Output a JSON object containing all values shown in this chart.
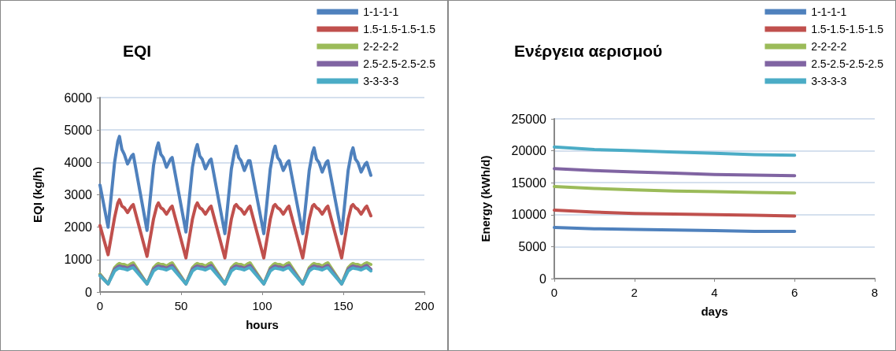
{
  "chart_data": [
    {
      "type": "line",
      "title": "EQI",
      "xlabel": "hours",
      "ylabel": "EQI (kg/h)",
      "xlim": [
        0,
        200
      ],
      "xticks": [
        0,
        50,
        100,
        150,
        200
      ],
      "ylim": [
        0,
        6000
      ],
      "yticks": [
        0,
        1000,
        2000,
        3000,
        4000,
        5000,
        6000
      ],
      "grid": "y",
      "legend": "top right",
      "marker": "none",
      "line_style": "solid",
      "x": [
        0,
        5,
        9,
        11,
        12,
        13.5,
        15,
        17,
        19.5,
        20.5,
        29,
        33,
        35,
        36,
        37.5,
        39,
        41,
        43.5,
        44.5,
        53,
        57,
        59,
        60,
        61.5,
        63,
        65,
        67.5,
        68.5,
        77,
        81,
        83,
        84,
        85.5,
        87,
        89,
        91.5,
        92.5,
        101,
        105,
        107,
        108,
        109.5,
        111,
        113,
        115.5,
        116.5,
        125,
        129,
        131,
        132,
        133.5,
        135,
        137,
        139.5,
        140.5,
        149,
        153,
        155,
        156,
        157.5,
        159,
        161,
        163.5,
        164.5,
        167
      ],
      "series": [
        {
          "name": "1-1-1-1",
          "color": "#4f81bd",
          "values": [
            3300,
            2000,
            4000,
            4650,
            4800,
            4400,
            4250,
            3950,
            4200,
            4250,
            1900,
            3900,
            4450,
            4600,
            4250,
            4150,
            3850,
            4100,
            4150,
            1850,
            3850,
            4400,
            4550,
            4200,
            4100,
            3800,
            4050,
            4100,
            1800,
            3800,
            4350,
            4500,
            4150,
            4050,
            3750,
            4050,
            4050,
            1800,
            3800,
            4350,
            4500,
            4150,
            4050,
            3750,
            4000,
            4050,
            1800,
            3750,
            4300,
            4450,
            4100,
            4000,
            3700,
            4000,
            4050,
            1800,
            3750,
            4300,
            4450,
            4100,
            4000,
            3700,
            3950,
            4000,
            3600
          ]
        },
        {
          "name": "1.5-1.5-1.5-1.5",
          "color": "#c0504d",
          "values": [
            2050,
            1150,
            2300,
            2750,
            2850,
            2650,
            2600,
            2450,
            2650,
            2700,
            1100,
            2250,
            2650,
            2750,
            2600,
            2550,
            2400,
            2600,
            2650,
            1050,
            2250,
            2650,
            2750,
            2600,
            2550,
            2400,
            2600,
            2650,
            1050,
            2250,
            2650,
            2700,
            2600,
            2550,
            2400,
            2600,
            2650,
            1050,
            2250,
            2650,
            2700,
            2600,
            2550,
            2400,
            2600,
            2650,
            1050,
            2250,
            2650,
            2700,
            2600,
            2550,
            2400,
            2600,
            2650,
            1050,
            2250,
            2650,
            2700,
            2600,
            2550,
            2400,
            2600,
            2650,
            2350
          ]
        },
        {
          "name": "2-2-2-2",
          "color": "#9bbb59",
          "values": [
            550,
            250,
            750,
            850,
            880,
            850,
            850,
            800,
            880,
            900,
            250,
            750,
            850,
            880,
            850,
            850,
            800,
            880,
            900,
            250,
            750,
            850,
            880,
            850,
            850,
            800,
            880,
            900,
            250,
            750,
            850,
            880,
            850,
            850,
            800,
            880,
            900,
            250,
            750,
            850,
            880,
            850,
            850,
            800,
            880,
            900,
            250,
            750,
            850,
            880,
            850,
            850,
            800,
            880,
            900,
            250,
            750,
            850,
            880,
            850,
            850,
            800,
            880,
            900,
            850
          ]
        },
        {
          "name": "2.5-2.5-2.5-2.5",
          "color": "#8064a2",
          "values": [
            520,
            250,
            700,
            780,
            800,
            780,
            770,
            730,
            800,
            820,
            250,
            700,
            780,
            800,
            780,
            770,
            730,
            800,
            820,
            250,
            700,
            780,
            800,
            780,
            770,
            730,
            800,
            820,
            250,
            700,
            780,
            800,
            780,
            770,
            730,
            800,
            820,
            250,
            700,
            780,
            800,
            780,
            770,
            730,
            800,
            820,
            250,
            700,
            780,
            800,
            780,
            770,
            730,
            800,
            820,
            250,
            700,
            780,
            800,
            780,
            770,
            730,
            800,
            820,
            700
          ]
        },
        {
          "name": "3-3-3-3",
          "color": "#4bacc6",
          "values": [
            500,
            250,
            650,
            720,
            740,
            720,
            710,
            680,
            740,
            750,
            250,
            650,
            720,
            740,
            720,
            710,
            680,
            740,
            750,
            250,
            650,
            720,
            740,
            720,
            710,
            680,
            740,
            750,
            250,
            650,
            720,
            740,
            720,
            710,
            680,
            740,
            750,
            250,
            650,
            720,
            740,
            720,
            710,
            680,
            740,
            750,
            250,
            650,
            720,
            740,
            720,
            710,
            680,
            740,
            750,
            250,
            650,
            720,
            740,
            720,
            710,
            680,
            740,
            750,
            650
          ]
        }
      ]
    },
    {
      "type": "line",
      "title": "Ενέργεια αερισμού",
      "xlabel": "days",
      "ylabel": "Energy (kWh/d)",
      "xlim": [
        0,
        8
      ],
      "xticks": [
        0,
        2,
        4,
        6,
        8
      ],
      "ylim": [
        0,
        25000
      ],
      "yticks": [
        0,
        5000,
        10000,
        15000,
        20000,
        25000
      ],
      "grid": "y",
      "legend": "top right",
      "marker": "none",
      "line_style": "solid",
      "x": [
        0,
        1,
        2,
        3,
        4,
        5,
        6
      ],
      "series": [
        {
          "name": "1-1-1-1",
          "color": "#4f81bd",
          "values": [
            8000,
            7800,
            7700,
            7600,
            7500,
            7400,
            7400
          ]
        },
        {
          "name": "1.5-1.5-1.5-1.5",
          "color": "#c0504d",
          "values": [
            10700,
            10400,
            10200,
            10100,
            10000,
            9900,
            9800
          ]
        },
        {
          "name": "2-2-2-2",
          "color": "#9bbb59",
          "values": [
            14400,
            14100,
            13900,
            13700,
            13600,
            13500,
            13400
          ]
        },
        {
          "name": "2.5-2.5-2.5-2.5",
          "color": "#8064a2",
          "values": [
            17200,
            16900,
            16700,
            16500,
            16300,
            16200,
            16100
          ]
        },
        {
          "name": "3-3-3-3",
          "color": "#4bacc6",
          "values": [
            20600,
            20200,
            20000,
            19800,
            19600,
            19400,
            19300
          ]
        }
      ]
    }
  ]
}
